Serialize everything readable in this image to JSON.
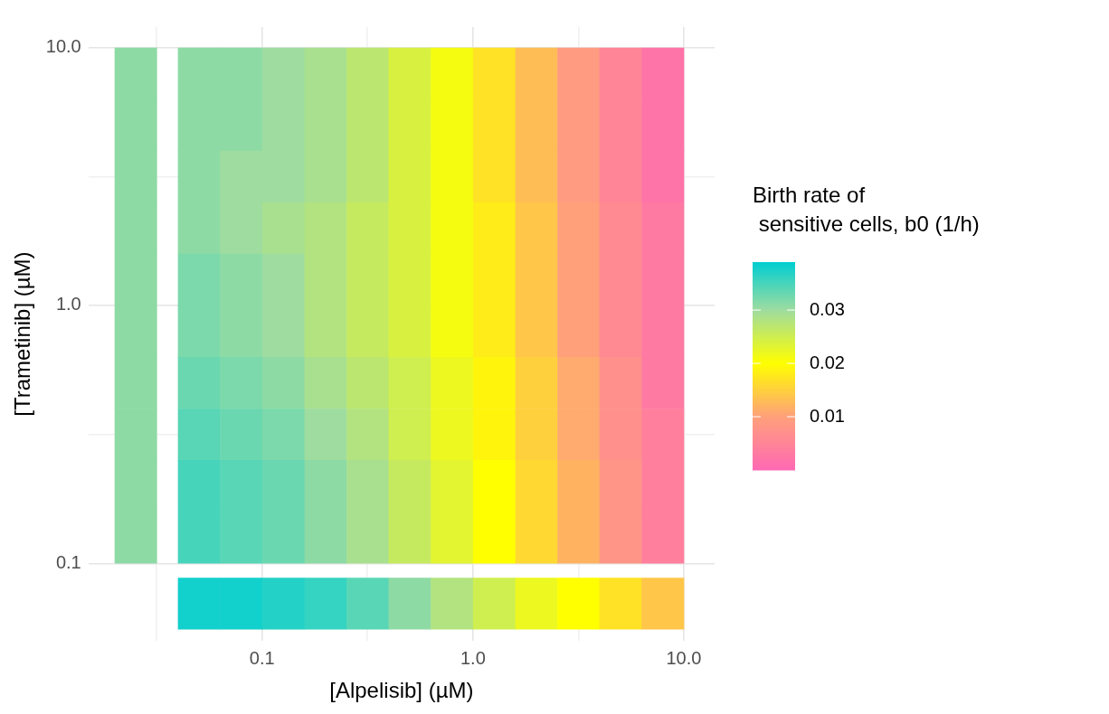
{
  "chart_data": {
    "type": "heatmap",
    "xlabel": "[Alpelisib] (µM)",
    "ylabel": "[Trametinib] (µM)",
    "clabel": "Birth rate of\n sensitive cells, b0 (1/h)",
    "log": "xy",
    "grid": true,
    "xlim": [
      0.015,
      14
    ],
    "ylim": [
      0.05,
      12
    ],
    "xticks": [
      {
        "value": 0.0316,
        "label": null
      },
      {
        "value": 0.1,
        "label": "0.1"
      },
      {
        "value": 0.316,
        "label": null
      },
      {
        "value": 1,
        "label": "1.0"
      },
      {
        "value": 3.16,
        "label": null
      },
      {
        "value": 10,
        "label": "10.0"
      }
    ],
    "yticks": [
      {
        "value": 0.1,
        "label": "0.1"
      },
      {
        "value": 0.316,
        "label": null
      },
      {
        "value": 1,
        "label": "1.0"
      },
      {
        "value": 3.16,
        "label": null
      },
      {
        "value": 10,
        "label": "10.0"
      }
    ],
    "clim": [
      0,
      0.039
    ],
    "cticks": [
      0.01,
      0.02,
      0.03
    ],
    "x": [
      0.0251,
      0.0501,
      0.0794,
      0.126,
      0.2,
      0.316,
      0.501,
      0.794,
      1.26,
      2.0,
      3.16,
      5.01,
      7.94
    ],
    "y": [
      7.94,
      5.01,
      3.16,
      2.0,
      1.26,
      0.794,
      0.501,
      0.316,
      0.2,
      0.126,
      0.07
    ],
    "cells": [
      [
        0.031,
        0.031,
        0.031,
        0.03,
        0.029,
        0.027,
        0.024,
        0.021,
        0.017,
        0.013,
        0.009,
        0.005,
        0.002
      ],
      [
        0.031,
        0.031,
        0.031,
        0.03,
        0.029,
        0.027,
        0.024,
        0.021,
        0.017,
        0.013,
        0.009,
        0.005,
        0.002
      ],
      [
        0.031,
        0.031,
        0.03,
        0.03,
        0.029,
        0.027,
        0.024,
        0.021,
        0.017,
        0.013,
        0.009,
        0.005,
        0.002
      ],
      [
        0.031,
        0.031,
        0.03,
        0.029,
        0.028,
        0.026,
        0.024,
        0.021,
        0.018,
        0.014,
        0.01,
        0.006,
        0.003
      ],
      [
        0.031,
        0.032,
        0.031,
        0.03,
        0.028,
        0.026,
        0.024,
        0.021,
        0.018,
        0.014,
        0.01,
        0.006,
        0.003
      ],
      [
        0.031,
        0.032,
        0.031,
        0.03,
        0.028,
        0.026,
        0.024,
        0.021,
        0.018,
        0.014,
        0.01,
        0.006,
        0.003
      ],
      [
        0.031,
        0.033,
        0.032,
        0.031,
        0.029,
        0.027,
        0.025,
        0.022,
        0.019,
        0.015,
        0.011,
        0.007,
        0.003
      ],
      [
        0.031,
        0.034,
        0.033,
        0.032,
        0.03,
        0.028,
        0.025,
        0.022,
        0.019,
        0.015,
        0.011,
        0.007,
        0.004
      ],
      [
        0.031,
        0.035,
        0.034,
        0.033,
        0.031,
        0.029,
        0.026,
        0.023,
        0.02,
        0.016,
        0.012,
        0.008,
        0.004
      ],
      [
        0.031,
        0.035,
        0.034,
        0.033,
        0.031,
        0.029,
        0.026,
        0.023,
        0.02,
        0.016,
        0.012,
        0.008,
        0.004
      ],
      [
        null,
        0.038,
        0.038,
        0.037,
        0.036,
        0.034,
        0.031,
        0.028,
        0.025,
        0.022,
        0.02,
        0.017,
        0.014
      ]
    ]
  }
}
